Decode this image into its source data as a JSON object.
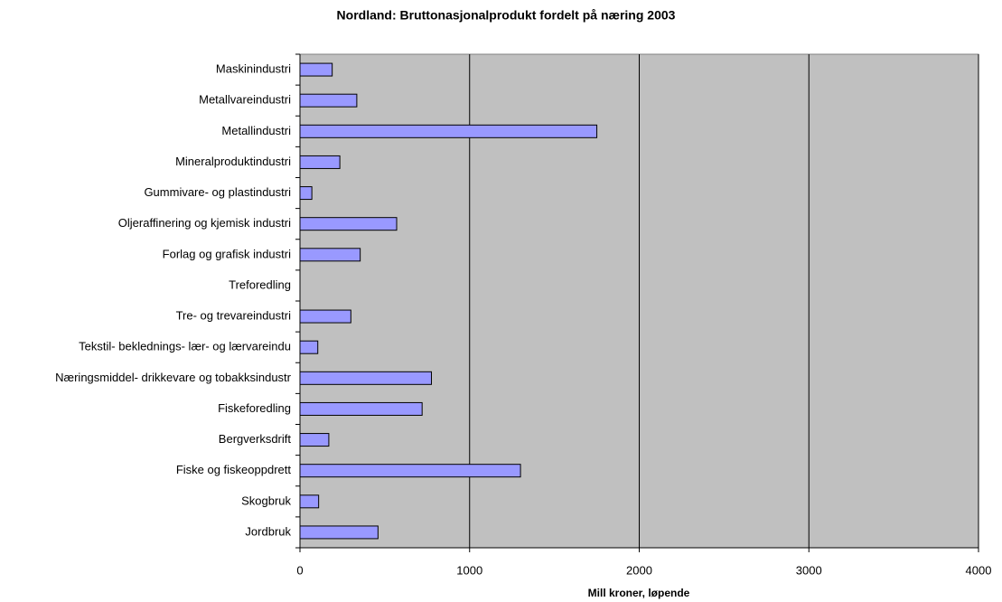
{
  "chart_data": {
    "type": "bar",
    "orientation": "horizontal",
    "title": "Nordland: Bruttonasjonalprodukt fordelt på næring 2003",
    "x_label": "Mill kroner, løpende",
    "categories": [
      "Maskinindustri",
      "Metallvareindustri",
      "Metallindustri",
      "Mineralproduktindustri",
      "Gummivare- og plastindustri",
      "Oljeraffinering og kjemisk industri",
      "Forlag og grafisk industri",
      "Treforedling",
      "Tre- og trevareindustri",
      "Tekstil- beklednings- lær- og lærvareindu",
      "Næringsmiddel- drikkevare og tobakksindustr",
      "Fiskeforedling",
      "Bergverksdrift",
      "Fiske og fiskeoppdrett",
      "Skogbruk",
      "Jordbruk"
    ],
    "values": [
      190,
      335,
      1750,
      235,
      70,
      570,
      355,
      0,
      300,
      105,
      775,
      720,
      170,
      1300,
      110,
      460
    ],
    "color": "#9999ff",
    "plot_background": "#c0c0c0",
    "xlim": [
      0,
      4000
    ],
    "xticks": [
      0,
      1000,
      2000,
      3000,
      4000
    ],
    "grid": true
  }
}
